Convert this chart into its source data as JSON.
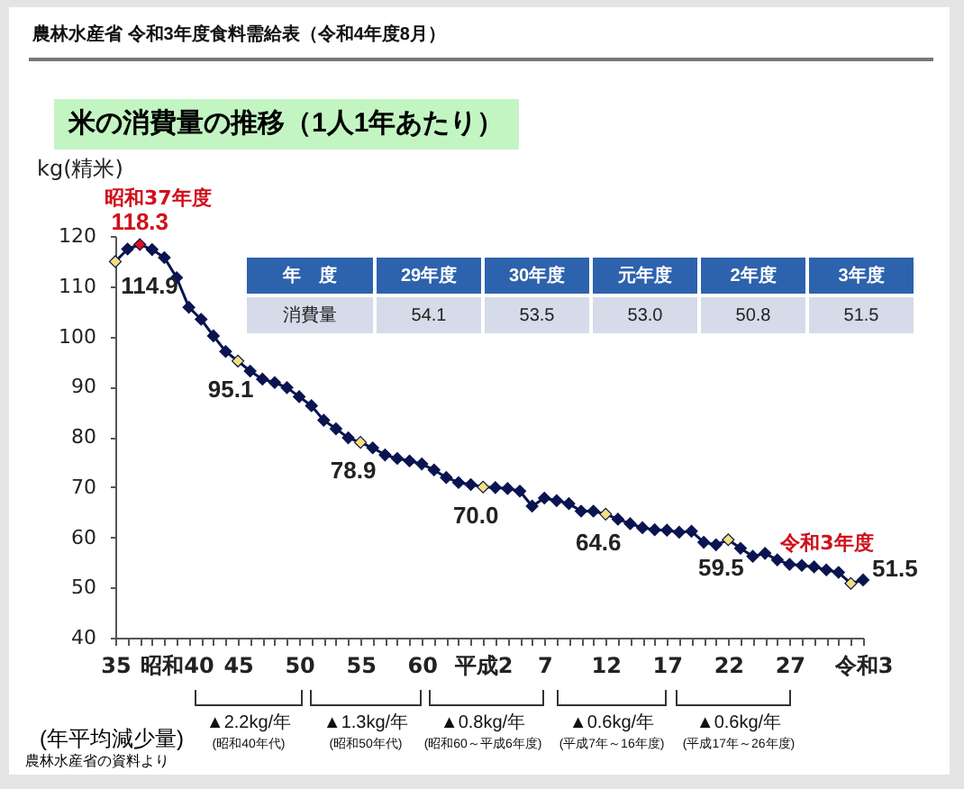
{
  "chart_data": [
    {
      "type": "line",
      "subtitle": "農林水産省 令和3年度食料需給表（令和4年度8月）",
      "title": "米の消費量の推移（1人1年あたり）",
      "ylabel": "kg(精米)",
      "categories": [
        "35",
        null,
        null,
        null,
        null,
        "昭和40",
        null,
        null,
        null,
        null,
        "45",
        null,
        null,
        null,
        null,
        "50",
        null,
        null,
        null,
        null,
        "55",
        null,
        null,
        null,
        null,
        "60",
        null,
        null,
        null,
        null,
        "平成2",
        null,
        null,
        null,
        null,
        "7",
        null,
        null,
        null,
        null,
        "12",
        null,
        null,
        null,
        null,
        "17",
        null,
        null,
        null,
        null,
        "22",
        null,
        null,
        null,
        null,
        "27",
        null,
        null,
        null,
        null,
        null,
        "令和3"
      ],
      "values": [
        114.9,
        117.4,
        118.3,
        117.3,
        115.7,
        111.7,
        105.8,
        103.4,
        100.1,
        97.0,
        95.1,
        93.1,
        91.5,
        90.8,
        89.8,
        88.0,
        86.2,
        83.3,
        81.6,
        79.8,
        78.9,
        77.8,
        76.4,
        75.7,
        75.2,
        74.6,
        73.4,
        71.9,
        70.9,
        70.5,
        70.0,
        69.9,
        69.7,
        69.2,
        66.2,
        67.8,
        67.3,
        66.7,
        65.2,
        65.2,
        64.6,
        63.6,
        62.7,
        61.9,
        61.5,
        61.4,
        61.0,
        61.2,
        59.0,
        58.5,
        59.5,
        57.8,
        56.2,
        56.8,
        55.5,
        54.6,
        54.4,
        54.1,
        53.5,
        53.0,
        50.8,
        51.5
      ],
      "value_labels": [
        "114.9",
        null,
        "118.3",
        null,
        null,
        null,
        null,
        null,
        null,
        null,
        "95.1",
        null,
        null,
        null,
        null,
        null,
        null,
        null,
        null,
        null,
        "78.9",
        null,
        null,
        null,
        null,
        null,
        null,
        null,
        null,
        null,
        "70.0",
        null,
        null,
        null,
        null,
        null,
        null,
        null,
        null,
        null,
        "64.6",
        null,
        null,
        null,
        null,
        null,
        null,
        null,
        null,
        null,
        "59.5",
        null,
        null,
        null,
        null,
        null,
        null,
        null,
        null,
        null,
        null,
        "51.5"
      ],
      "color": "#0a1450",
      "colors": [
        "#f2e07a",
        "#0a1450",
        "#e0101e",
        "#0a1450",
        "#0a1450",
        "#0a1450",
        "#0a1450",
        "#0a1450",
        "#0a1450",
        "#0a1450",
        "#f2e07a",
        "#0a1450",
        "#0a1450",
        "#0a1450",
        "#0a1450",
        "#0a1450",
        "#0a1450",
        "#0a1450",
        "#0a1450",
        "#0a1450",
        "#f2e07a",
        "#0a1450",
        "#0a1450",
        "#0a1450",
        "#0a1450",
        "#0a1450",
        "#0a1450",
        "#0a1450",
        "#0a1450",
        "#0a1450",
        "#f2e07a",
        "#0a1450",
        "#0a1450",
        "#0a1450",
        "#0a1450",
        "#0a1450",
        "#0a1450",
        "#0a1450",
        "#0a1450",
        "#0a1450",
        "#f2e07a",
        "#0a1450",
        "#0a1450",
        "#0a1450",
        "#0a1450",
        "#0a1450",
        "#0a1450",
        "#0a1450",
        "#0a1450",
        "#0a1450",
        "#f2e07a",
        "#0a1450",
        "#0a1450",
        "#0a1450",
        "#0a1450",
        "#0a1450",
        "#0a1450",
        "#0a1450",
        "#0a1450",
        "#0a1450",
        "#f2e07a",
        "#0a1450"
      ],
      "marker": "diamond",
      "ylim": [
        40,
        120
      ],
      "yticks": [
        40,
        50,
        60,
        70,
        80,
        90,
        100,
        110,
        120
      ],
      "annotations": [
        {
          "text": "昭和37年度",
          "y": 118.3
        },
        "令和3年度",
        "(年平均減少量)",
        "▲2.2kg/年",
        "(昭和40年代)",
        "▲1.3kg/年",
        "(昭和50年代)",
        "▲0.8kg/年",
        "(昭和60～平成6年度)",
        "▲0.6kg/年",
        "(平成7年～16年度)",
        "▲0.6kg/年",
        "(平成17年～26年度)",
        "農林水産省の資料より"
      ]
    },
    {
      "type": "other",
      "xlabel": "年　度",
      "categories": [
        "29年度",
        "30年度",
        "元年度",
        "2年度",
        "3年度"
      ],
      "y_categories": [
        "消費量"
      ],
      "cell_labels": [
        [
          "54.1",
          "53.5",
          "53.0",
          "50.8",
          "51.5"
        ]
      ]
    }
  ]
}
